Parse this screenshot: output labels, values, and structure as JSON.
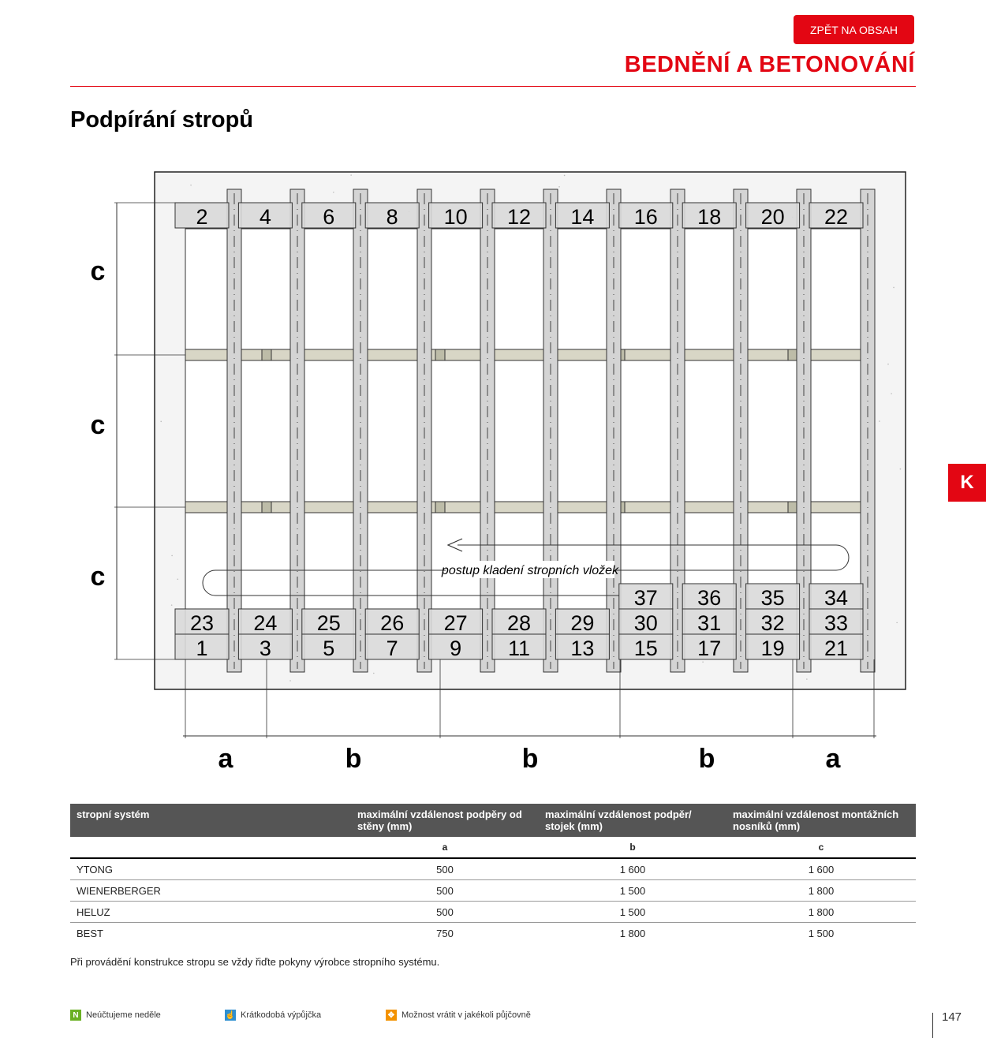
{
  "header": {
    "back_button": "ZPĚT NA OBSAH",
    "section_title": "BEDNĚNÍ A BETONOVÁNÍ",
    "side_tab": "K"
  },
  "page_title": "Podpírání stropů",
  "diagram": {
    "top_row": [
      "2",
      "4",
      "6",
      "8",
      "10",
      "12",
      "14",
      "16",
      "18",
      "20",
      "22"
    ],
    "row_upper": [
      "",
      "",
      "",
      "",
      "",
      "",
      "",
      "37",
      "36",
      "35",
      "34"
    ],
    "row_middle": [
      "23",
      "24",
      "25",
      "26",
      "27",
      "28",
      "29",
      "30",
      "31",
      "32",
      "33"
    ],
    "row_bottom": [
      "1",
      "3",
      "5",
      "7",
      "9",
      "11",
      "13",
      "15",
      "17",
      "19",
      "21"
    ],
    "left_labels": [
      "c",
      "c",
      "c"
    ],
    "bottom_labels": [
      "a",
      "b",
      "b",
      "b",
      "a"
    ],
    "arrow_label": "postup kladení stropních vložek",
    "colors": {
      "block": "#d9d9d9",
      "beam": "#d8d6c6",
      "prop": "#d4d4d4"
    }
  },
  "table": {
    "headers": [
      "stropní systém",
      "maximální vzdálenost podpěry od stěny (mm)",
      "maximální vzdálenost podpěr/ stojek (mm)",
      "maximální vzdálenost montážních nosníků (mm)"
    ],
    "sub": [
      "",
      "a",
      "b",
      "c"
    ],
    "rows": [
      [
        "YTONG",
        "500",
        "1 600",
        "1 600"
      ],
      [
        "WIENERBERGER",
        "500",
        "1 500",
        "1 800"
      ],
      [
        "HELUZ",
        "500",
        "1 500",
        "1 800"
      ],
      [
        "BEST",
        "750",
        "1 800",
        "1 500"
      ]
    ]
  },
  "note": "Při provádění konstrukce stropu se vždy řiďte pokyny výrobce stropního systému.",
  "legend": [
    {
      "icon": "N",
      "label": "Neúčtujeme neděle",
      "color": "#6ab023"
    },
    {
      "icon": "hand-icon",
      "label": "Krátkodobá výpůjčka",
      "color": "#2e8fd0"
    },
    {
      "icon": "arrows-icon",
      "label": "Možnost vrátit v jakékoli půjčovně",
      "color": "#f39200"
    }
  ],
  "page_number": "147"
}
